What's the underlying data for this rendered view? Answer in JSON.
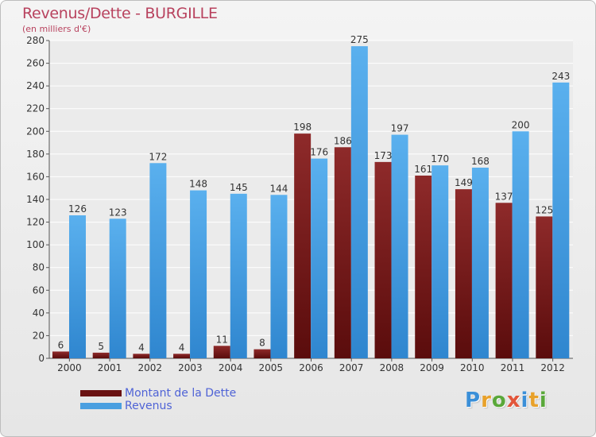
{
  "chart_data": {
    "type": "bar",
    "title": "Revenus/Dette - BURGILLE",
    "subtitle": "(en milliers d'€)",
    "categories": [
      "2000",
      "2001",
      "2002",
      "2003",
      "2004",
      "2005",
      "2006",
      "2007",
      "2008",
      "2009",
      "2010",
      "2011",
      "2012"
    ],
    "series": [
      {
        "name": "Montant de la Dette",
        "color": "#7a1a1a",
        "values": [
          6,
          5,
          4,
          4,
          11,
          8,
          198,
          186,
          173,
          161,
          149,
          137,
          125
        ]
      },
      {
        "name": "Revenus",
        "color": "#4a9fe0",
        "values": [
          126,
          123,
          172,
          148,
          145,
          144,
          176,
          275,
          197,
          170,
          168,
          200,
          243
        ]
      }
    ],
    "ylim": [
      0,
      280
    ],
    "yticks": [
      0,
      20,
      40,
      60,
      80,
      100,
      120,
      140,
      160,
      180,
      200,
      220,
      240,
      260,
      280
    ],
    "grid": true,
    "legend": "bottom-left"
  },
  "logo": {
    "letters": [
      {
        "ch": "P",
        "color": "#3a8fd8"
      },
      {
        "ch": "r",
        "color": "#e8a12a"
      },
      {
        "ch": "o",
        "color": "#5aa83a"
      },
      {
        "ch": "x",
        "color": "#e2553a"
      },
      {
        "ch": "i",
        "color": "#3a8fd8"
      },
      {
        "ch": "t",
        "color": "#e8a12a"
      },
      {
        "ch": "i",
        "color": "#5aa83a"
      }
    ]
  }
}
